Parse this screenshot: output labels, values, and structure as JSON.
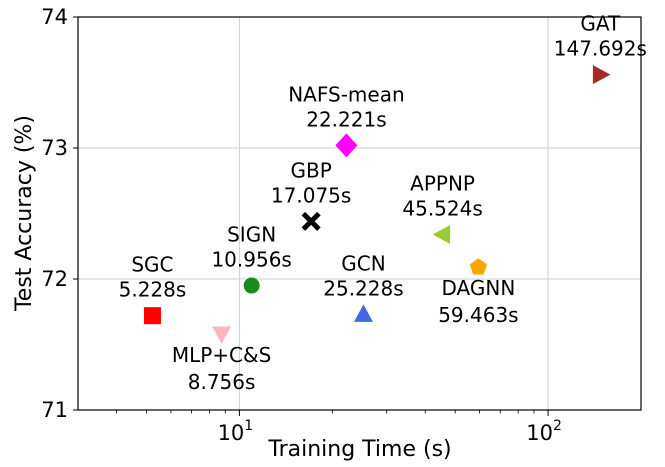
{
  "chart_data": {
    "type": "scatter",
    "title": "",
    "xlabel": "Training Time (s)",
    "ylabel": "Test Accuracy (%)",
    "xscale": "log",
    "xlim": [
      3,
      200
    ],
    "ylim": [
      71,
      74
    ],
    "grid": true,
    "x_ticks": [
      {
        "value": 10,
        "base": "10",
        "exp": "1"
      },
      {
        "value": 100,
        "base": "10",
        "exp": "2"
      }
    ],
    "y_ticks": [
      {
        "value": 71,
        "label": "71"
      },
      {
        "value": 72,
        "label": "72"
      },
      {
        "value": 73,
        "label": "73"
      },
      {
        "value": 74,
        "label": "74"
      }
    ],
    "points": [
      {
        "name": "SGC",
        "time_label": "5.228s",
        "x": 5.228,
        "y": 71.72,
        "marker": "square",
        "color": "#ff0000",
        "label_pos": "above"
      },
      {
        "name": "MLP+C&S",
        "time_label": "8.756s",
        "x": 8.756,
        "y": 71.58,
        "marker": "triangle-down",
        "color": "#ffb6c1",
        "label_pos": "below"
      },
      {
        "name": "SIGN",
        "time_label": "10.956s",
        "x": 10.956,
        "y": 71.95,
        "marker": "circle",
        "color": "#1a8a1a",
        "label_pos": "above"
      },
      {
        "name": "GBP",
        "time_label": "17.075s",
        "x": 17.075,
        "y": 72.44,
        "marker": "x",
        "color": "#000000",
        "label_pos": "above"
      },
      {
        "name": "NAFS-mean",
        "time_label": "22.221s",
        "x": 22.221,
        "y": 73.02,
        "marker": "diamond",
        "color": "#ff00ff",
        "label_pos": "above"
      },
      {
        "name": "GCN",
        "time_label": "25.228s",
        "x": 25.228,
        "y": 71.73,
        "marker": "triangle-up",
        "color": "#4169e1",
        "label_pos": "above"
      },
      {
        "name": "APPNP",
        "time_label": "45.524s",
        "x": 45.524,
        "y": 72.34,
        "marker": "triangle-left",
        "color": "#9acd32",
        "label_pos": "above"
      },
      {
        "name": "DAGNN",
        "time_label": "59.463s",
        "x": 59.463,
        "y": 72.09,
        "marker": "pentagon",
        "color": "#ffa500",
        "label_pos": "below"
      },
      {
        "name": "GAT",
        "time_label": "147.692s",
        "x": 147.692,
        "y": 73.56,
        "marker": "triangle-right",
        "color": "#a52a2a",
        "label_pos": "above"
      }
    ]
  }
}
